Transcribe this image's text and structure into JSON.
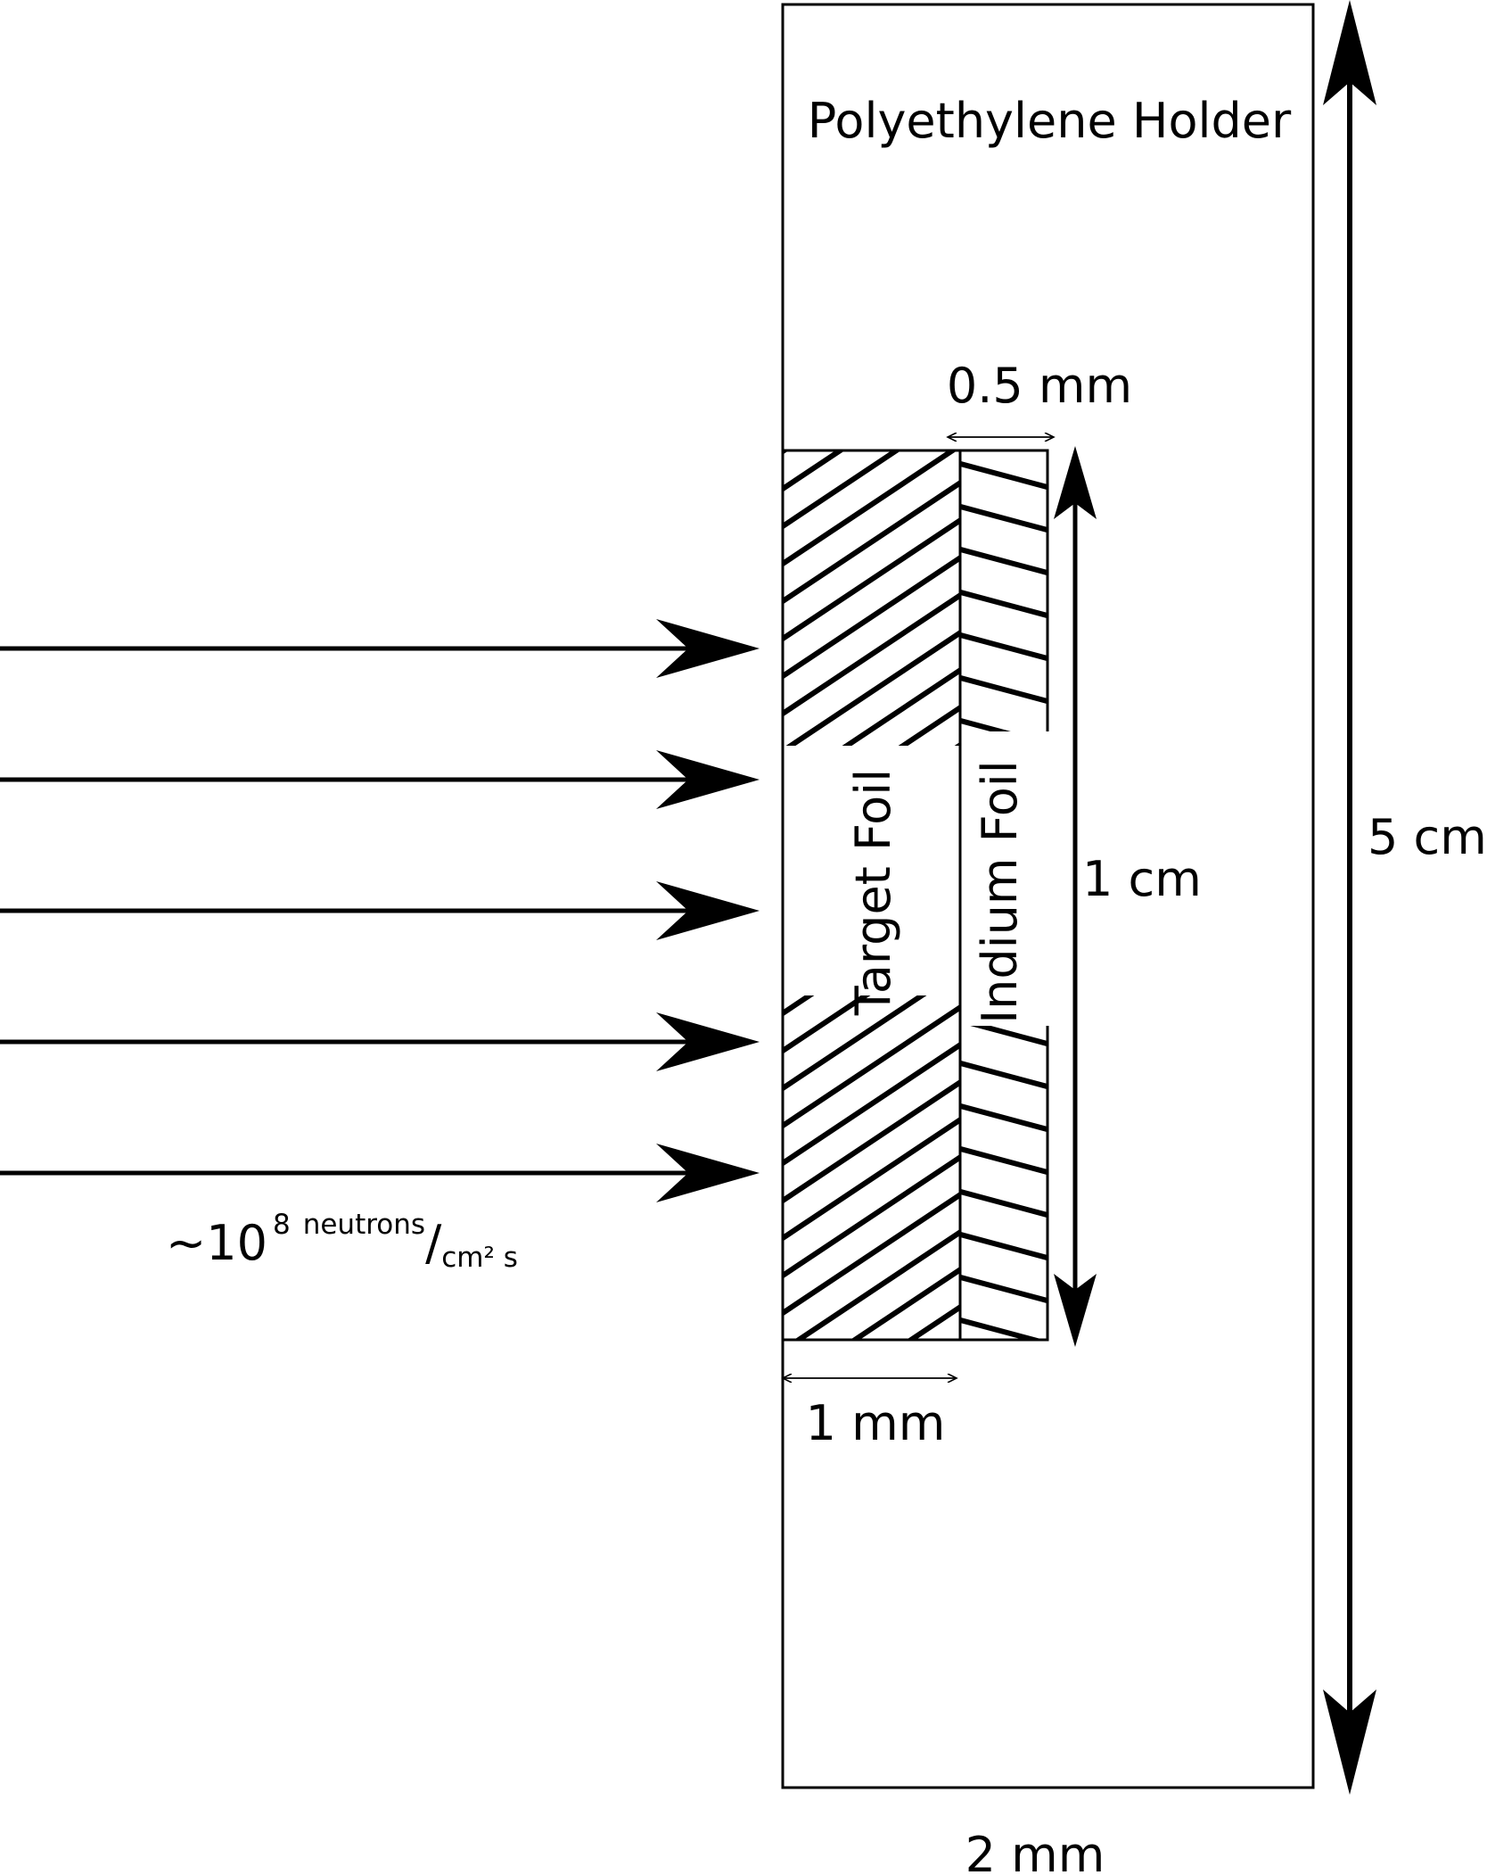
{
  "labels": {
    "holder": "Polyethylene Holder",
    "indium_thickness": "0.5 mm",
    "target_thickness": "1 mm",
    "foil_height": "1 cm",
    "holder_height": "5 cm",
    "holder_width": "2 mm",
    "target_foil": "Target Foil",
    "indium_foil": "Indium Foil",
    "flux_prefix": "~10",
    "flux_exponent": "8",
    "flux_numerator": "neutrons",
    "flux_slash": "/",
    "flux_denominator": "cm² s"
  },
  "beam": {
    "arrow_count": 5
  },
  "colors": {
    "ink": "#000000",
    "background": "#ffffff"
  }
}
